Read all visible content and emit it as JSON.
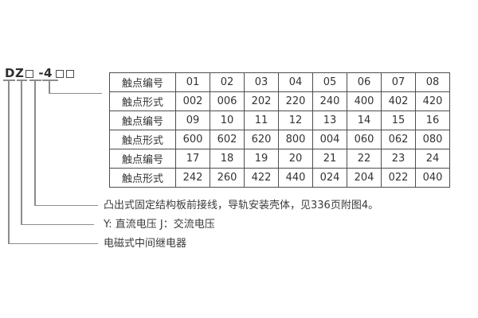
{
  "colors": {
    "background": "#ffffff",
    "text": "#333333",
    "table_border": "#4d4d4d",
    "leader_line": "#8c8c8c"
  },
  "model_code": {
    "display": "DZ□-4□□",
    "prefix": "DZ",
    "series": "-4"
  },
  "contact_table": {
    "rows": [
      {
        "label": "触点编号",
        "values": [
          "01",
          "02",
          "03",
          "04",
          "05",
          "06",
          "07",
          "08"
        ]
      },
      {
        "label": "触点形式",
        "values": [
          "002",
          "006",
          "202",
          "220",
          "240",
          "400",
          "402",
          "420"
        ]
      },
      {
        "label": "触点编号",
        "values": [
          "09",
          "10",
          "11",
          "12",
          "13",
          "14",
          "15",
          "16"
        ]
      },
      {
        "label": "触点形式",
        "values": [
          "600",
          "602",
          "620",
          "800",
          "004",
          "060",
          "062",
          "080"
        ]
      },
      {
        "label": "触点编号",
        "values": [
          "17",
          "18",
          "19",
          "20",
          "21",
          "22",
          "23",
          "24"
        ]
      },
      {
        "label": "触点形式",
        "values": [
          "242",
          "260",
          "422",
          "440",
          "024",
          "204",
          "022",
          "040"
        ]
      }
    ]
  },
  "annotations": {
    "mounting": "凸出式固定结构板前接线，导轨安装壳体，见336页附图4。",
    "voltage": "Y: 直流电压  J：交流电压",
    "relay_type": "电磁式中间继电器"
  }
}
